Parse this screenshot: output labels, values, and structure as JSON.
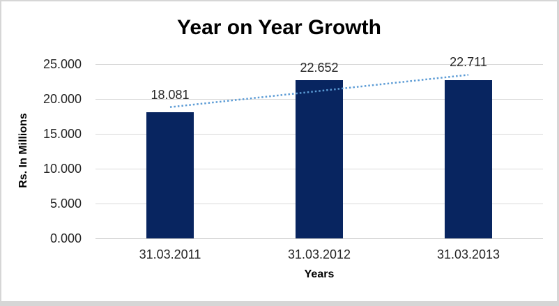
{
  "chart_data": {
    "type": "bar",
    "title": "Year on Year Growth",
    "categories": [
      "31.03.2011",
      "31.03.2012",
      "31.03.2013"
    ],
    "values": [
      18.081,
      22.652,
      22.711
    ],
    "value_labels": [
      "18.081",
      "22.652",
      "22.711"
    ],
    "xlabel": "Years",
    "ylabel": "Rs. In Millions",
    "ylim": [
      0,
      25
    ],
    "ytick_step": 5,
    "ytick_labels": [
      "0.000",
      "5.000",
      "10.000",
      "15.000",
      "20.000",
      "25.000"
    ],
    "grid": true,
    "legend": false,
    "trendline": {
      "style": "dotted",
      "fit": "linear",
      "color": "#5b9bd5"
    },
    "colors": {
      "bar": "#082560",
      "gridline": "#d9d9d9",
      "axis_line": "#c9c9c9",
      "title_text": "#000000",
      "tick_text": "#262626",
      "axis_title_text": "#000000",
      "frame_border": "#d6d6d6",
      "background": "#ffffff"
    }
  }
}
